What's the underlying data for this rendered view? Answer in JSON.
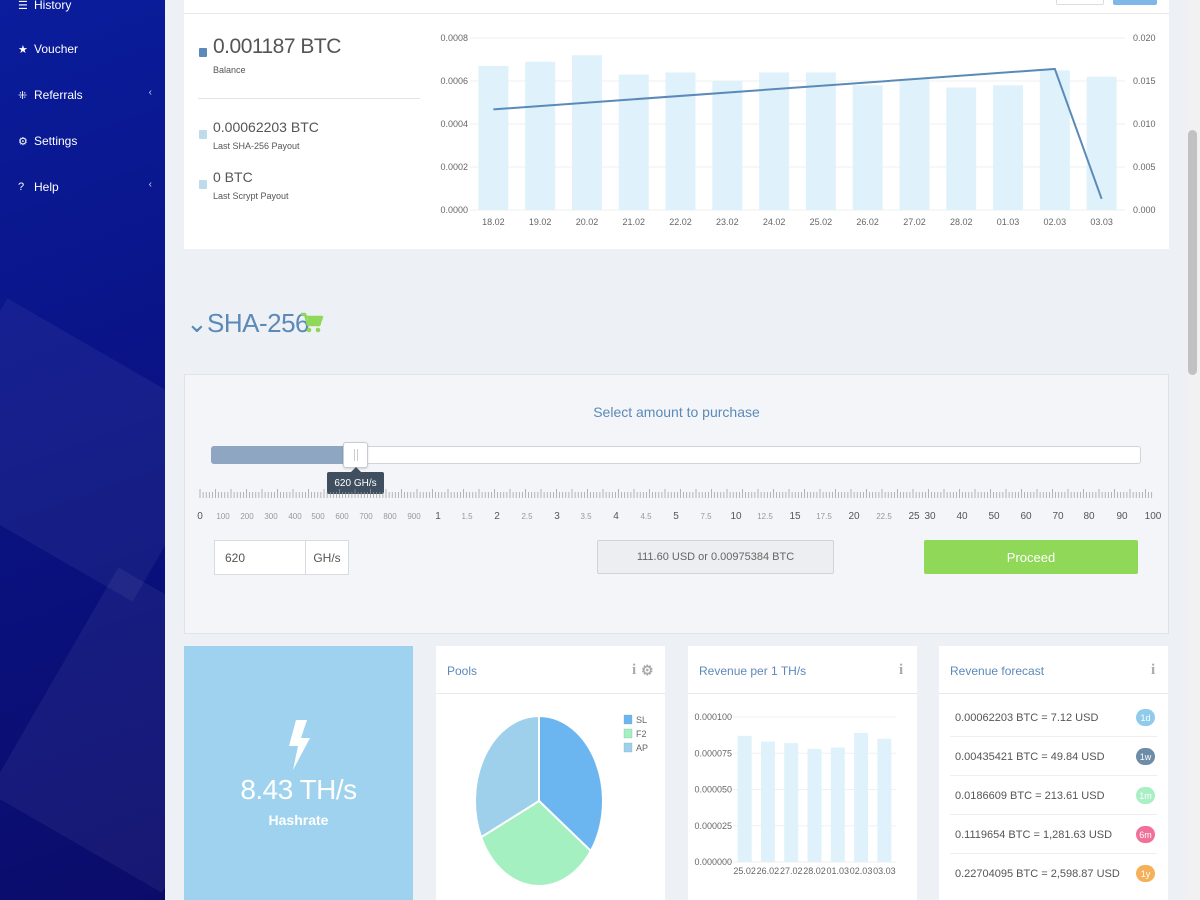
{
  "sidebar": {
    "items": [
      {
        "label": "History",
        "icon": "list-icon",
        "glyph": "☰",
        "submenu": false
      },
      {
        "label": "Voucher",
        "icon": "star-icon",
        "glyph": "★",
        "submenu": false
      },
      {
        "label": "Referrals",
        "icon": "network-icon",
        "glyph": "⁜",
        "submenu": true
      },
      {
        "label": "Settings",
        "icon": "gears-icon",
        "glyph": "⚙",
        "submenu": false
      },
      {
        "label": "Help",
        "icon": "question-icon",
        "glyph": "?",
        "submenu": true
      }
    ],
    "chevron": "‹"
  },
  "balance": {
    "main_value": "0.001187 BTC",
    "main_label": "Balance",
    "sha_value": "0.00062203 BTC",
    "sha_label": "Last SHA-256 Payout",
    "scrypt_value": "0 BTC",
    "scrypt_label": "Last Scrypt Payout",
    "colors": {
      "main": "#5b8ab8",
      "sha": "#bcdcec",
      "scrypt": "#bcdcec"
    }
  },
  "chart_data": [
    {
      "type": "bar",
      "categories": [
        "18.02",
        "19.02",
        "20.02",
        "21.02",
        "22.02",
        "23.02",
        "24.02",
        "25.02",
        "26.02",
        "27.02",
        "28.02",
        "01.03",
        "02.03",
        "03.03"
      ],
      "series": [
        {
          "values": [
            0.00067,
            0.00069,
            0.00072,
            0.00063,
            0.00064,
            0.0006,
            0.00064,
            0.00064,
            0.00058,
            0.00061,
            0.00057,
            0.00058,
            0.00065,
            0.00062
          ],
          "axis": "left",
          "type": "bar",
          "color": "#dff2fb"
        },
        {
          "values": [
            0.0117,
            null,
            null,
            null,
            null,
            null,
            null,
            null,
            null,
            null,
            null,
            null,
            0.0164,
            0.0013
          ],
          "axis": "right",
          "type": "line",
          "color": "#5b8ab8"
        }
      ],
      "ylim_left": [
        0,
        0.0008
      ],
      "yticks_left": [
        "0.0000",
        "0.0002",
        "0.0004",
        "0.0006",
        "0.0008"
      ],
      "ylim_right": [
        0,
        0.02
      ],
      "yticks_right": [
        "0.000",
        "0.005",
        "0.010",
        "0.015",
        "0.020"
      ],
      "grid": true
    },
    {
      "type": "pie",
      "legend_position": "top-right",
      "slices": [
        {
          "name": "SL",
          "value": 35,
          "color": "#6bb6f0"
        },
        {
          "name": "F2",
          "value": 33,
          "color": "#a4f0c0"
        },
        {
          "name": "AP",
          "value": 32,
          "color": "#9ed0ec"
        }
      ]
    },
    {
      "type": "bar",
      "categories": [
        "25.02",
        "26.02",
        "27.02",
        "28.02",
        "01.03",
        "02.03",
        "03.03"
      ],
      "values": [
        8.7e-05,
        8.3e-05,
        8.2e-05,
        7.8e-05,
        7.9e-05,
        8.9e-05,
        8.5e-05
      ],
      "ylim": [
        0,
        0.0001
      ],
      "yticks": [
        "0.000000",
        "0.000025",
        "0.000050",
        "0.000075",
        "0.000100"
      ],
      "grid": true,
      "color": "#dff2fb"
    }
  ],
  "sha": {
    "title": "SHA-256",
    "chevron": "⌄",
    "cart_icon": "shopping-cart-icon",
    "cart_color": "#8fd858"
  },
  "purchase": {
    "heading": "Select amount to purchase",
    "slider_tooltip": "620 GH/s",
    "slider_fraction": 0.157,
    "scale_labels": [
      {
        "text": "0",
        "sm": false
      },
      {
        "text": "100",
        "sm": true
      },
      {
        "text": "200",
        "sm": true
      },
      {
        "text": "300",
        "sm": true
      },
      {
        "text": "400",
        "sm": true
      },
      {
        "text": "500",
        "sm": true
      },
      {
        "text": "600",
        "sm": true
      },
      {
        "text": "700",
        "sm": true
      },
      {
        "text": "800",
        "sm": true
      },
      {
        "text": "900",
        "sm": true
      },
      {
        "text": "1",
        "sm": false
      },
      {
        "text": "1.5",
        "sm": true
      },
      {
        "text": "2",
        "sm": false
      },
      {
        "text": "2.5",
        "sm": true
      },
      {
        "text": "3",
        "sm": false
      },
      {
        "text": "3.5",
        "sm": true
      },
      {
        "text": "4",
        "sm": false
      },
      {
        "text": "4.5",
        "sm": true
      },
      {
        "text": "5",
        "sm": false
      },
      {
        "text": "7.5",
        "sm": true
      },
      {
        "text": "10",
        "sm": false
      },
      {
        "text": "12.5",
        "sm": true
      },
      {
        "text": "15",
        "sm": false
      },
      {
        "text": "17.5",
        "sm": true
      },
      {
        "text": "20",
        "sm": false
      },
      {
        "text": "22.5",
        "sm": true
      },
      {
        "text": "25",
        "sm": false
      },
      {
        "text": "30",
        "sm": false
      },
      {
        "text": "40",
        "sm": false
      },
      {
        "text": "50",
        "sm": false
      },
      {
        "text": "60",
        "sm": false
      },
      {
        "text": "70",
        "sm": false
      },
      {
        "text": "80",
        "sm": false
      },
      {
        "text": "90",
        "sm": false
      },
      {
        "text": "100",
        "sm": false
      }
    ],
    "quantity_value": "620",
    "quantity_unit": "GH/s",
    "price_text": "111.60 USD or 0.00975384 BTC",
    "proceed_label": "Proceed"
  },
  "hashrate": {
    "icon": "lightning-bolt-icon",
    "value": "8.43 TH/s",
    "label": "Hashrate"
  },
  "pools_card": {
    "title": "Pools",
    "info": "i",
    "gear": "⚙"
  },
  "revenue_card": {
    "title": "Revenue per 1 TH/s",
    "info": "i"
  },
  "forecast_card": {
    "title": "Revenue forecast",
    "info": "i",
    "rows": [
      {
        "text": "0.00062203 BTC = 7.12 USD",
        "badge": "1d",
        "color": "#8fcbeb"
      },
      {
        "text": "0.00435421 BTC = 49.84 USD",
        "badge": "1w",
        "color": "#6d8ca8"
      },
      {
        "text": "0.0186609 BTC = 213.61 USD",
        "badge": "1m",
        "color": "#a8efc4"
      },
      {
        "text": "0.1119654 BTC = 1,281.63 USD",
        "badge": "6m",
        "color": "#f0709a"
      },
      {
        "text": "0.22704095 BTC = 2,598.87 USD",
        "badge": "1y",
        "color": "#f5b05a"
      }
    ]
  }
}
